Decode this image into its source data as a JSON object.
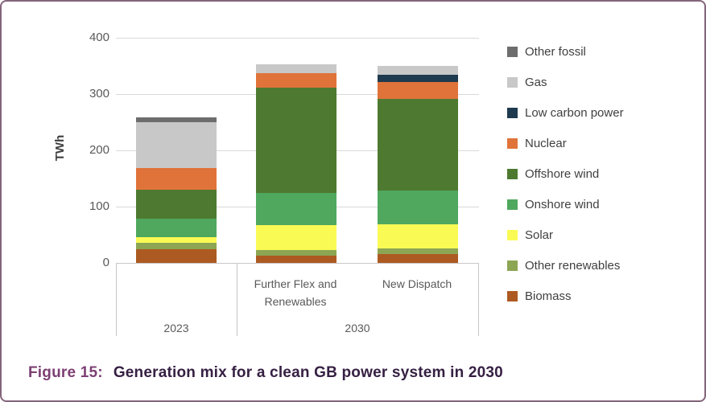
{
  "figure": {
    "caption_prefix": "Figure 15:",
    "caption_text": "Generation mix for a clean GB power system in 2030",
    "border_color": "#83657b",
    "caption_prefix_color": "#7d4073",
    "caption_text_color": "#362043"
  },
  "chart_data": {
    "type": "bar",
    "stacked": true,
    "ylabel": "TWh",
    "ylim": [
      0,
      400
    ],
    "yticks": [
      0,
      100,
      200,
      300,
      400
    ],
    "grid": true,
    "legend_position": "right",
    "gridline_color": "#d9d9d9",
    "categories": [
      "2023",
      "Further Flex and Renewables",
      "New Dispatch"
    ],
    "groups": [
      {
        "label": "2023",
        "columns": [
          ""
        ]
      },
      {
        "label": "2030",
        "columns": [
          "Further Flex and Renewables",
          "New Dispatch"
        ]
      }
    ],
    "series": [
      {
        "name": "Other fossil",
        "color": "#6d6d6d",
        "values": [
          8,
          0,
          0
        ]
      },
      {
        "name": "Gas",
        "color": "#c8c8c8",
        "values": [
          81,
          16,
          16
        ]
      },
      {
        "name": "Low carbon power",
        "color": "#1e3a4e",
        "values": [
          0,
          0,
          13
        ]
      },
      {
        "name": "Nuclear",
        "color": "#e0733a",
        "values": [
          39,
          26,
          29
        ]
      },
      {
        "name": "Offshore wind",
        "color": "#4d7a30",
        "values": [
          51,
          187,
          164
        ]
      },
      {
        "name": "Onshore wind",
        "color": "#4fa85e",
        "values": [
          34,
          57,
          59
        ]
      },
      {
        "name": "Solar",
        "color": "#fafa55",
        "values": [
          10,
          44,
          44
        ]
      },
      {
        "name": "Other renewables",
        "color": "#8ca653",
        "values": [
          11,
          10,
          9
        ]
      },
      {
        "name": "Biomass",
        "color": "#ad5a22",
        "values": [
          24,
          13,
          16
        ]
      }
    ],
    "totals": [
      258,
      353,
      350
    ]
  }
}
